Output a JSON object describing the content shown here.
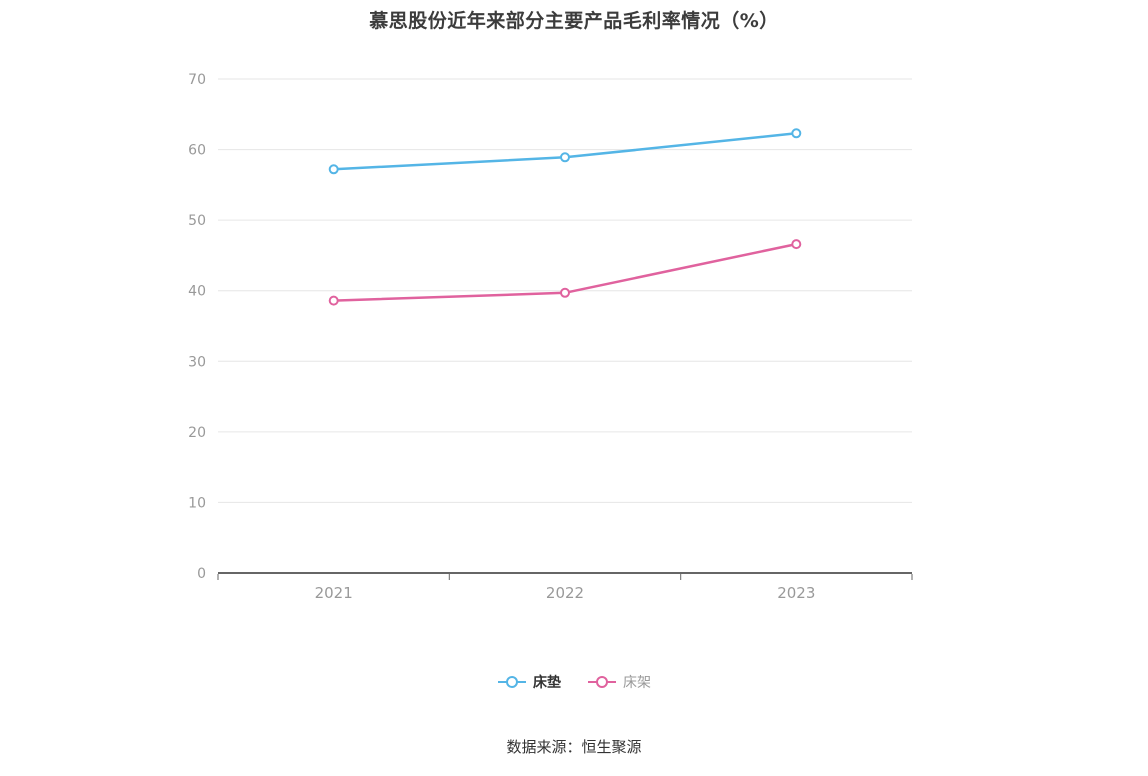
{
  "title": "慕思股份近年来部分主要产品毛利率情况（%）",
  "footer": "数据来源：恒生聚源",
  "chart_data": {
    "type": "line",
    "title": "慕思股份近年来部分主要产品毛利率情况（%）",
    "categories": [
      "2021",
      "2022",
      "2023"
    ],
    "series": [
      {
        "id": "mattress",
        "name": "床垫",
        "color": "#54b5e6",
        "values": [
          57.2,
          58.9,
          62.3
        ]
      },
      {
        "id": "bedframe",
        "name": "床架",
        "color": "#e0629e",
        "values": [
          38.6,
          39.7,
          46.6
        ]
      }
    ],
    "xlabel": "",
    "ylabel": "",
    "ylim": [
      0,
      70
    ],
    "ytick_step": 10,
    "grid": true,
    "legend_position": "bottom",
    "source_note": "数据来源：恒生聚源"
  }
}
